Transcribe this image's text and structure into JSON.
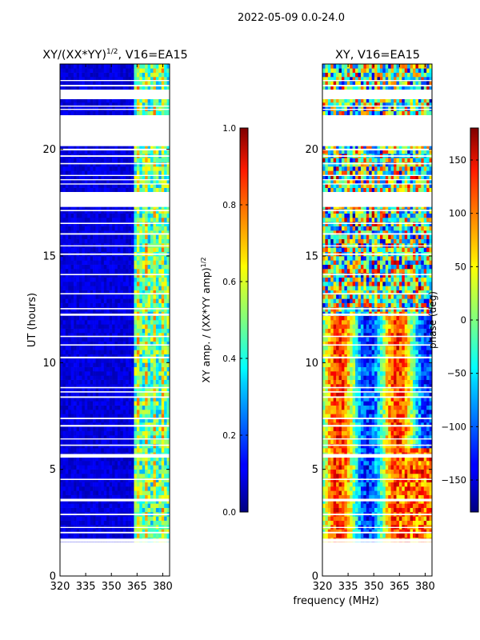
{
  "suptitle": "2022-05-09 0.0-24.0",
  "chart_data": [
    {
      "type": "heatmap",
      "title": "XY/(XX*YY)^1/2, V16=EA15",
      "title_main": "XY/(XX*YY)",
      "title_sup": "1/2",
      "title_rest": ", V16=EA15",
      "ylabel": "UT (hours)",
      "x_ticks": [
        "320",
        "335",
        "350",
        "365",
        "380"
      ],
      "x_tick_values": [
        320,
        335,
        350,
        365,
        380
      ],
      "y_ticks": [
        "0",
        "5",
        "10",
        "15",
        "20"
      ],
      "y_tick_values": [
        0,
        5,
        10,
        15,
        20
      ],
      "xlim": [
        320,
        384
      ],
      "ylim": [
        0,
        24
      ],
      "data_ut_range": [
        1.6,
        24.0
      ],
      "bright_freq_band": [
        362,
        384
      ],
      "colorbar": {
        "label_main": "XY amp. / (XX*YY amp)",
        "label_sup": "1/2",
        "ticks": [
          "0.0",
          "0.2",
          "0.4",
          "0.6",
          "0.8",
          "1.0"
        ],
        "tick_values": [
          0,
          0.2,
          0.4,
          0.6,
          0.8,
          1.0
        ],
        "range": [
          0,
          1
        ]
      }
    },
    {
      "type": "heatmap",
      "title": "XY, V16=EA15",
      "xlabel": "frequency (MHz)",
      "x_ticks": [
        "320",
        "335",
        "350",
        "365",
        "380"
      ],
      "x_tick_values": [
        320,
        335,
        350,
        365,
        380
      ],
      "y_ticks": [
        "0",
        "5",
        "10",
        "15",
        "20"
      ],
      "y_tick_values": [
        0,
        5,
        10,
        15,
        20
      ],
      "xlim": [
        320,
        384
      ],
      "ylim": [
        0,
        24
      ],
      "data_ut_range": [
        1.6,
        24.0
      ],
      "colorbar": {
        "label": "phase (deg)",
        "ticks": [
          "150",
          "100",
          "50",
          "0",
          "−50",
          "−100",
          "−150"
        ],
        "tick_values": [
          150,
          100,
          50,
          0,
          -50,
          -100,
          -150
        ],
        "range": [
          -180,
          180
        ]
      }
    }
  ],
  "gaps_hours": [
    [
      1.6,
      1.75
    ],
    [
      2.0,
      2.07
    ],
    [
      2.25,
      2.3
    ],
    [
      2.85,
      2.92
    ],
    [
      3.5,
      3.62
    ],
    [
      4.5,
      4.56
    ],
    [
      5.55,
      5.72
    ],
    [
      6.1,
      6.16
    ],
    [
      6.4,
      6.45
    ],
    [
      7.0,
      7.08
    ],
    [
      7.35,
      7.42
    ],
    [
      8.35,
      8.42
    ],
    [
      8.6,
      8.66
    ],
    [
      8.8,
      8.86
    ],
    [
      10.2,
      10.28
    ],
    [
      10.8,
      10.86
    ],
    [
      11.2,
      11.26
    ],
    [
      12.2,
      12.3
    ],
    [
      12.5,
      12.56
    ],
    [
      13.2,
      13.26
    ],
    [
      14.1,
      14.16
    ],
    [
      15.05,
      15.12
    ],
    [
      15.45,
      15.5
    ],
    [
      16.0,
      16.07
    ],
    [
      16.5,
      16.56
    ],
    [
      17.1,
      17.16
    ],
    [
      17.3,
      18.0
    ],
    [
      18.35,
      18.4
    ],
    [
      18.55,
      18.6
    ],
    [
      18.75,
      18.8
    ],
    [
      19.3,
      19.36
    ],
    [
      19.65,
      19.72
    ],
    [
      19.95,
      20.03
    ],
    [
      20.15,
      21.6
    ],
    [
      21.85,
      21.9
    ],
    [
      22.0,
      22.05
    ],
    [
      22.35,
      22.8
    ],
    [
      22.95,
      23.02
    ],
    [
      23.2,
      23.25
    ]
  ]
}
